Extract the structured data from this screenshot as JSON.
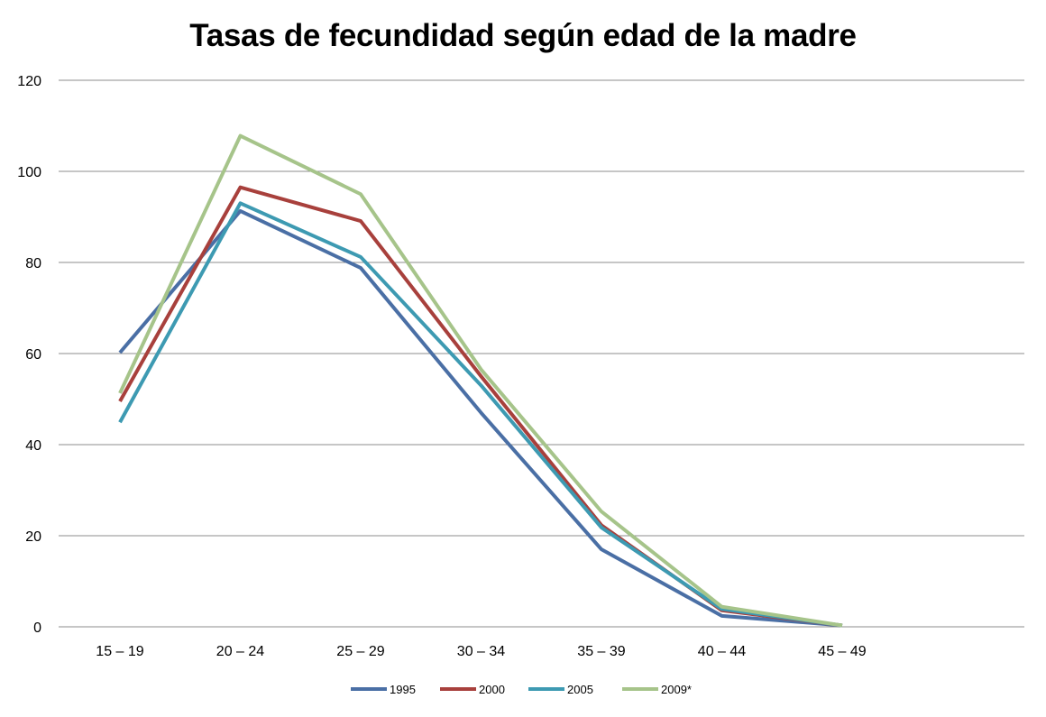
{
  "chart_data": {
    "type": "line",
    "title": "Tasas de fecundidad según edad de la madre",
    "xlabel": "",
    "ylabel": "",
    "categories": [
      "15 – 19",
      "20 – 24",
      "25 – 29",
      "30 – 34",
      "35 – 39",
      "40 – 44",
      "45 – 49"
    ],
    "ylim": [
      0,
      120
    ],
    "yticks": [
      "0",
      "20",
      "40",
      "60",
      "80",
      "100",
      "120"
    ],
    "grid": true,
    "legend_position": "bottom",
    "series": [
      {
        "name": "1995",
        "color": "#4A6FA5",
        "values": [
          60.2,
          91.3,
          78.8,
          47.0,
          17.0,
          2.4,
          0.3
        ]
      },
      {
        "name": "2000",
        "color": "#A8403C",
        "values": [
          49.5,
          96.5,
          89.1,
          55.0,
          22.3,
          3.6,
          0.3
        ]
      },
      {
        "name": "2005",
        "color": "#3D9AB2",
        "values": [
          44.9,
          93.0,
          81.2,
          53.0,
          21.8,
          3.9,
          0.3
        ]
      },
      {
        "name": "2009*",
        "color": "#A6C48A",
        "values": [
          51.3,
          107.8,
          95.0,
          56.5,
          25.3,
          4.4,
          0.3
        ]
      }
    ]
  }
}
